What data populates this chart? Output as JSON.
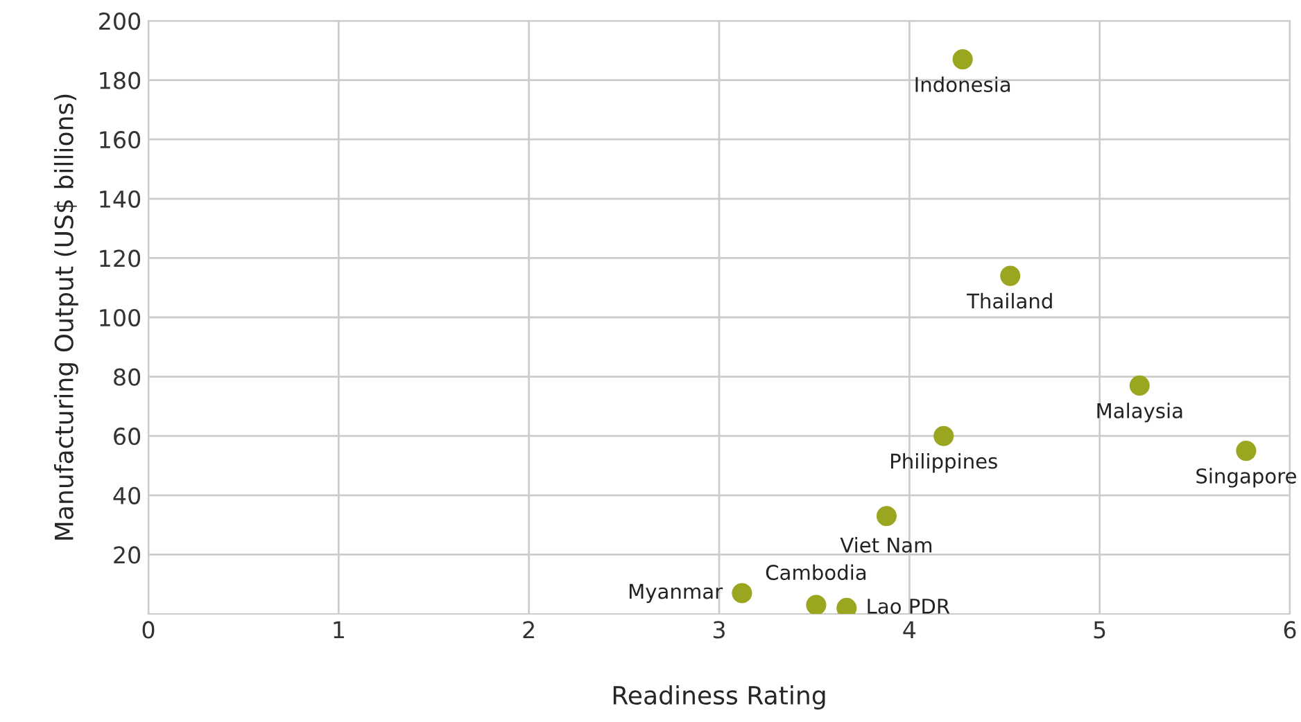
{
  "chart_data": {
    "type": "scatter",
    "xlabel": "Readiness Rating",
    "ylabel": "Manufacturing Output (US$ billions)",
    "series": [
      {
        "color": "#9aa520",
        "x": [
          4.28,
          4.53,
          5.21,
          5.77,
          4.18,
          3.88,
          3.12,
          3.51,
          3.67
        ],
        "values": [
          187,
          114,
          77,
          55,
          60,
          33,
          7,
          3,
          2
        ]
      }
    ],
    "annotations": [
      {
        "text": "Indonesia",
        "x": 4.28,
        "y": 187
      },
      {
        "text": "Thailand",
        "x": 4.53,
        "y": 114
      },
      {
        "text": "Malaysia",
        "x": 5.21,
        "y": 77
      },
      {
        "text": "Singapore",
        "x": 5.77,
        "y": 55
      },
      {
        "text": "Philippines",
        "x": 4.18,
        "y": 60
      },
      {
        "text": "Viet Nam",
        "x": 3.88,
        "y": 33
      },
      {
        "text": "Myanmar",
        "x": 3.12,
        "y": 7
      },
      {
        "text": "Cambodia",
        "x": 3.51,
        "y": 3
      },
      {
        "text": "Lao PDR",
        "x": 3.67,
        "y": 2
      }
    ],
    "xlim": [
      0,
      6
    ],
    "xticks": [
      0,
      1,
      2,
      3,
      4,
      5,
      6
    ],
    "ylim": [
      0,
      200
    ],
    "yticks": [
      20,
      40,
      60,
      80,
      100,
      120,
      140,
      160,
      180,
      200
    ],
    "grid": true,
    "marker": "circle",
    "legend": false
  }
}
